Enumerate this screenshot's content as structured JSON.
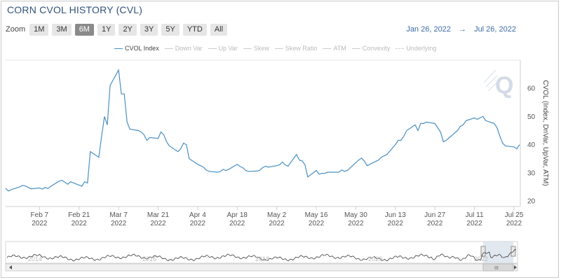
{
  "header": {
    "title": "CORN CVOL HISTORY (CVL)"
  },
  "zoom": {
    "label": "Zoom",
    "buttons": [
      "1M",
      "3M",
      "6M",
      "1Y",
      "2Y",
      "3Y",
      "5Y",
      "YTD",
      "All"
    ],
    "active": "6M"
  },
  "range": {
    "from": "Jan 26, 2022",
    "arrow": "→",
    "to": "Jul 26, 2022"
  },
  "legend": {
    "items": [
      "CVOL Index",
      "Down Var",
      "Up Var",
      "Skew",
      "Skew Ratio",
      "ATM",
      "Convexity",
      "Underlying"
    ],
    "active": "CVOL Index"
  },
  "navigator": {
    "years": [
      "2014",
      "2016",
      "2018",
      "2020",
      "2022"
    ],
    "scroll_label": "III"
  },
  "colors": {
    "line": "#4a90c2",
    "navigator_line": "#3a3a3a",
    "title": "#33537a"
  },
  "watermark": "Q",
  "chart_data": {
    "type": "line",
    "title": "CORN CVOL HISTORY (CVL)",
    "ylabel": "CVOL (Index, DnVar, UpVar, ATM)",
    "ylim": [
      18,
      70
    ],
    "yticks": [
      20,
      30,
      40,
      50,
      60
    ],
    "xlim": [
      "2022-01-26",
      "2022-07-27"
    ],
    "xticks": [
      {
        "date": "2022-02-07",
        "label": "Feb 7",
        "year": "2022"
      },
      {
        "date": "2022-02-21",
        "label": "Feb 21",
        "year": "2022"
      },
      {
        "date": "2022-03-07",
        "label": "Mar 7",
        "year": "2022"
      },
      {
        "date": "2022-03-21",
        "label": "Mar 21",
        "year": "2022"
      },
      {
        "date": "2022-04-04",
        "label": "Apr 4",
        "year": "2022"
      },
      {
        "date": "2022-04-18",
        "label": "Apr 18",
        "year": "2022"
      },
      {
        "date": "2022-05-02",
        "label": "May 2",
        "year": "2022"
      },
      {
        "date": "2022-05-16",
        "label": "May 16",
        "year": "2022"
      },
      {
        "date": "2022-05-30",
        "label": "May 30",
        "year": "2022"
      },
      {
        "date": "2022-06-13",
        "label": "Jun 13",
        "year": "2022"
      },
      {
        "date": "2022-06-27",
        "label": "Jun 27",
        "year": "2022"
      },
      {
        "date": "2022-07-11",
        "label": "Jul 11",
        "year": "2022"
      },
      {
        "date": "2022-07-25",
        "label": "Jul 25",
        "year": "2022"
      }
    ],
    "grid": false,
    "series": [
      {
        "name": "CVOL Index",
        "points": [
          [
            "2022-01-26",
            24.5
          ],
          [
            "2022-01-27",
            23.5
          ],
          [
            "2022-01-28",
            24
          ],
          [
            "2022-01-31",
            25
          ],
          [
            "2022-02-01",
            25.5
          ],
          [
            "2022-02-02",
            25.3
          ],
          [
            "2022-02-03",
            24.8
          ],
          [
            "2022-02-04",
            24.3
          ],
          [
            "2022-02-07",
            24.6
          ],
          [
            "2022-02-08",
            24.2
          ],
          [
            "2022-02-09",
            24.8
          ],
          [
            "2022-02-10",
            24.4
          ],
          [
            "2022-02-11",
            25.2
          ],
          [
            "2022-02-14",
            27
          ],
          [
            "2022-02-15",
            27.3
          ],
          [
            "2022-02-16",
            26.6
          ],
          [
            "2022-02-17",
            25.9
          ],
          [
            "2022-02-18",
            26.8
          ],
          [
            "2022-02-22",
            25.2
          ],
          [
            "2022-02-23",
            26.8
          ],
          [
            "2022-02-24",
            26.3
          ],
          [
            "2022-02-25",
            37.5
          ],
          [
            "2022-02-28",
            35.5
          ],
          [
            "2022-03-01",
            43
          ],
          [
            "2022-03-02",
            50
          ],
          [
            "2022-03-03",
            47
          ],
          [
            "2022-03-04",
            61
          ],
          [
            "2022-03-07",
            66.5
          ],
          [
            "2022-03-08",
            58
          ],
          [
            "2022-03-09",
            58
          ],
          [
            "2022-03-10",
            48
          ],
          [
            "2022-03-11",
            45.5
          ],
          [
            "2022-03-14",
            45
          ],
          [
            "2022-03-15",
            44.5
          ],
          [
            "2022-03-16",
            43.5
          ],
          [
            "2022-03-17",
            41.5
          ],
          [
            "2022-03-18",
            42.5
          ],
          [
            "2022-03-21",
            42.2
          ],
          [
            "2022-03-22",
            44.5
          ],
          [
            "2022-03-23",
            43.5
          ],
          [
            "2022-03-24",
            41
          ],
          [
            "2022-03-25",
            39.5
          ],
          [
            "2022-03-28",
            37.5
          ],
          [
            "2022-03-29",
            38.5
          ],
          [
            "2022-03-30",
            40.5
          ],
          [
            "2022-03-31",
            40
          ],
          [
            "2022-04-01",
            35
          ],
          [
            "2022-04-04",
            33
          ],
          [
            "2022-04-05",
            32.5
          ],
          [
            "2022-04-06",
            32
          ],
          [
            "2022-04-07",
            31
          ],
          [
            "2022-04-08",
            30.5
          ],
          [
            "2022-04-11",
            30.2
          ],
          [
            "2022-04-12",
            30.4
          ],
          [
            "2022-04-13",
            31.2
          ],
          [
            "2022-04-14",
            30.8
          ],
          [
            "2022-04-15",
            31.2
          ],
          [
            "2022-04-18",
            33
          ],
          [
            "2022-04-19",
            32.2
          ],
          [
            "2022-04-20",
            31.8
          ],
          [
            "2022-04-21",
            30.8
          ],
          [
            "2022-04-22",
            30.5
          ],
          [
            "2022-04-25",
            30.6
          ],
          [
            "2022-04-26",
            30.9
          ],
          [
            "2022-04-27",
            31.8
          ],
          [
            "2022-04-28",
            32.3
          ],
          [
            "2022-04-29",
            32
          ],
          [
            "2022-05-02",
            32.5
          ],
          [
            "2022-05-03",
            32.8
          ],
          [
            "2022-05-04",
            33.8
          ],
          [
            "2022-05-05",
            32.8
          ],
          [
            "2022-05-06",
            32.3
          ],
          [
            "2022-05-09",
            36.5
          ],
          [
            "2022-05-10",
            34.5
          ],
          [
            "2022-05-11",
            34.2
          ],
          [
            "2022-05-12",
            32.8
          ],
          [
            "2022-05-13",
            28.5
          ],
          [
            "2022-05-16",
            30.8
          ],
          [
            "2022-05-17",
            29.5
          ],
          [
            "2022-05-18",
            29.8
          ],
          [
            "2022-05-19",
            29.8
          ],
          [
            "2022-05-20",
            30.2
          ],
          [
            "2022-05-23",
            30.2
          ],
          [
            "2022-05-24",
            30.2
          ],
          [
            "2022-05-25",
            31
          ],
          [
            "2022-05-26",
            30.5
          ],
          [
            "2022-05-27",
            30.8
          ],
          [
            "2022-05-31",
            34.5
          ],
          [
            "2022-06-01",
            35.2
          ],
          [
            "2022-06-02",
            34.2
          ],
          [
            "2022-06-03",
            32.5
          ],
          [
            "2022-06-06",
            34
          ],
          [
            "2022-06-07",
            34.5
          ],
          [
            "2022-06-08",
            35.5
          ],
          [
            "2022-06-09",
            36
          ],
          [
            "2022-06-10",
            36.5
          ],
          [
            "2022-06-13",
            40
          ],
          [
            "2022-06-14",
            41.5
          ],
          [
            "2022-06-15",
            41.5
          ],
          [
            "2022-06-16",
            43
          ],
          [
            "2022-06-17",
            45
          ],
          [
            "2022-06-20",
            47
          ],
          [
            "2022-06-21",
            45
          ],
          [
            "2022-06-22",
            47.5
          ],
          [
            "2022-06-23",
            47.5
          ],
          [
            "2022-06-24",
            48
          ],
          [
            "2022-06-27",
            47.5
          ],
          [
            "2022-06-28",
            46
          ],
          [
            "2022-06-29",
            44.5
          ],
          [
            "2022-06-30",
            41
          ],
          [
            "2022-07-01",
            41.5
          ],
          [
            "2022-07-05",
            45
          ],
          [
            "2022-07-06",
            46.5
          ],
          [
            "2022-07-07",
            47
          ],
          [
            "2022-07-08",
            48.5
          ],
          [
            "2022-07-11",
            49.5
          ],
          [
            "2022-07-12",
            49
          ],
          [
            "2022-07-13",
            49.5
          ],
          [
            "2022-07-14",
            50
          ],
          [
            "2022-07-15",
            48.5
          ],
          [
            "2022-07-18",
            47.5
          ],
          [
            "2022-07-19",
            46
          ],
          [
            "2022-07-20",
            43
          ],
          [
            "2022-07-21",
            40.5
          ],
          [
            "2022-07-22",
            39.5
          ],
          [
            "2022-07-25",
            39.2
          ],
          [
            "2022-07-26",
            38.5
          ],
          [
            "2022-07-27",
            40
          ]
        ]
      }
    ]
  }
}
